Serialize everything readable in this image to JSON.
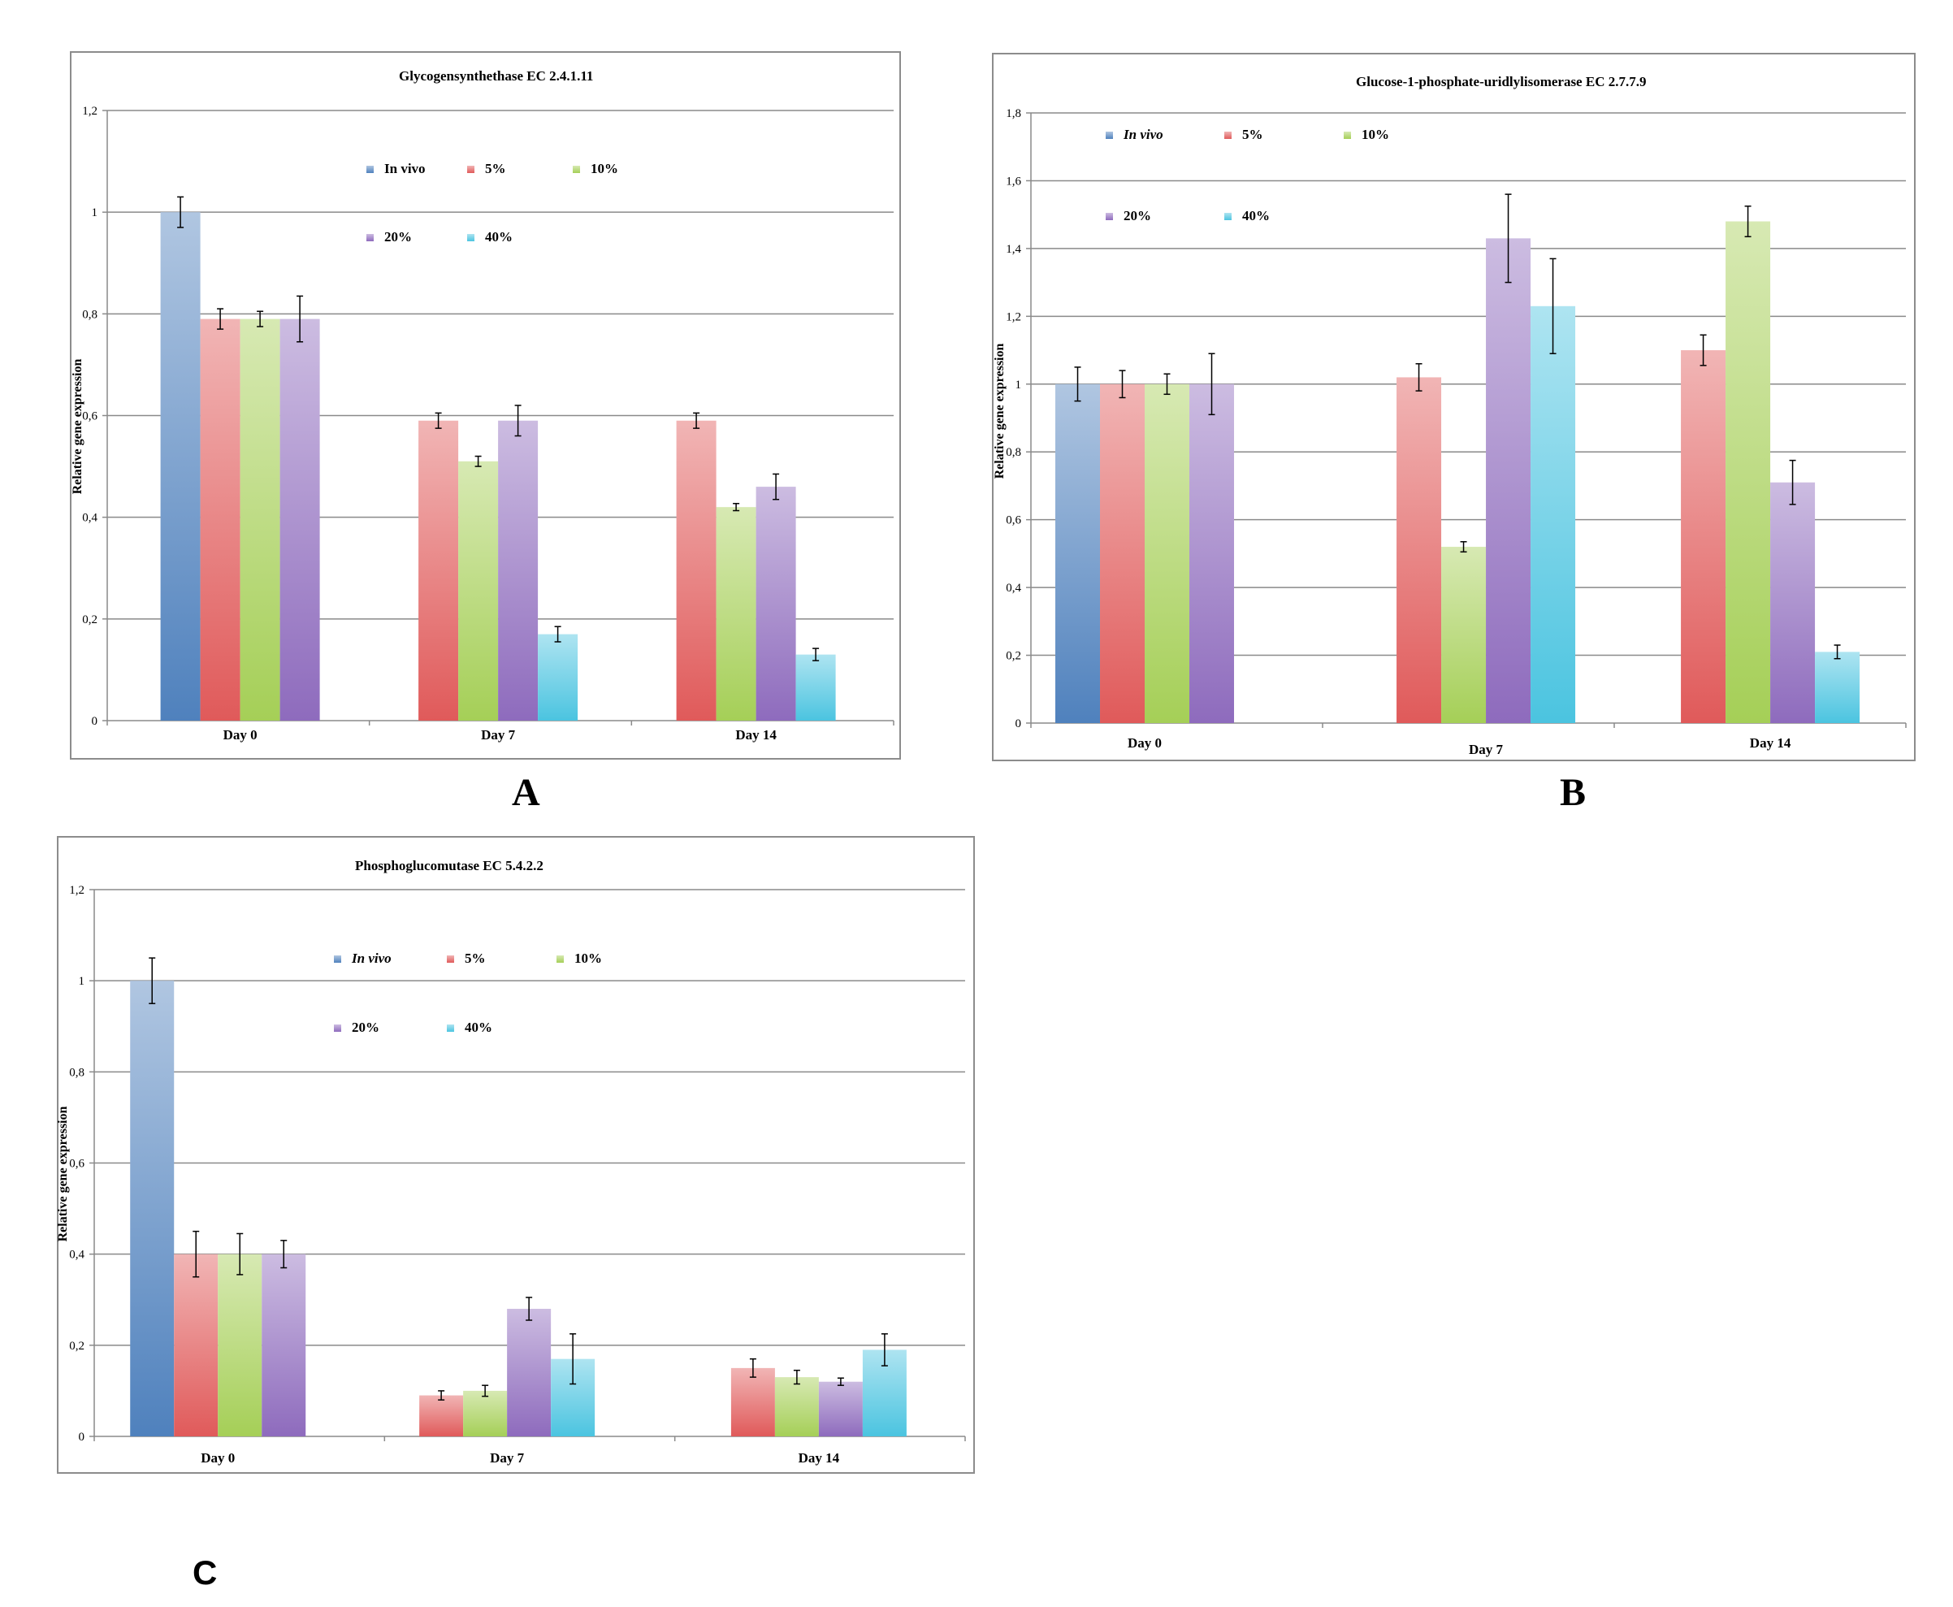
{
  "panel_letters": [
    "A",
    "B",
    "C"
  ],
  "chart_data": [
    {
      "type": "bar",
      "title": "Glycogensynthethase EC 2.4.1.11",
      "ylabel": "Relative gene expression",
      "xlabel": "",
      "categories": [
        "Day 0",
        "Day 7",
        "Day 14"
      ],
      "ylim": [
        0,
        1.2
      ],
      "yticks": [
        "0",
        "0,2",
        "0,4",
        "0,6",
        "0,8",
        "1",
        "1,2"
      ],
      "grid": true,
      "legend_italic": [
        false,
        false,
        false,
        false,
        false
      ],
      "series": [
        {
          "name": "In vivo",
          "color": "#4f81bd",
          "values": [
            1.0,
            null,
            null
          ],
          "errors": [
            0.03,
            null,
            null
          ]
        },
        {
          "name": "5%",
          "color": "#e05a5a",
          "values": [
            0.79,
            0.59,
            0.59
          ],
          "errors": [
            0.02,
            0.015,
            0.015
          ]
        },
        {
          "name": "10%",
          "color": "#a5cf57",
          "values": [
            0.79,
            0.51,
            0.42
          ],
          "errors": [
            0.015,
            0.01,
            0.007
          ]
        },
        {
          "name": "20%",
          "color": "#8e6bbd",
          "values": [
            0.79,
            0.59,
            0.46
          ],
          "errors": [
            0.045,
            0.03,
            0.025
          ]
        },
        {
          "name": "40%",
          "color": "#4bc4e0",
          "values": [
            null,
            0.17,
            0.13
          ],
          "errors": [
            null,
            0.015,
            0.012
          ]
        }
      ]
    },
    {
      "type": "bar",
      "title": "Glucose-1-phosphate-uridlylisomerase EC 2.7.7.9",
      "ylabel": "Relative gene expression",
      "xlabel": "",
      "categories": [
        "Day 0",
        "Day 7",
        "Day 14"
      ],
      "ylim": [
        0,
        1.8
      ],
      "yticks": [
        "0",
        "0,2",
        "0,4",
        "0,6",
        "0,8",
        "1",
        "1,2",
        "1,4",
        "1,6",
        "1,8"
      ],
      "grid": true,
      "legend_italic": [
        true,
        false,
        false,
        false,
        false
      ],
      "series": [
        {
          "name": "In vivo",
          "color": "#4f81bd",
          "values": [
            1.0,
            null,
            null
          ],
          "errors": [
            0.05,
            null,
            null
          ]
        },
        {
          "name": "5%",
          "color": "#e05a5a",
          "values": [
            1.0,
            1.02,
            1.1
          ],
          "errors": [
            0.04,
            0.04,
            0.045
          ]
        },
        {
          "name": "10%",
          "color": "#a5cf57",
          "values": [
            1.0,
            0.52,
            1.48
          ],
          "errors": [
            0.03,
            0.015,
            0.045
          ]
        },
        {
          "name": "20%",
          "color": "#8e6bbd",
          "values": [
            1.0,
            1.43,
            0.71
          ],
          "errors": [
            0.09,
            0.13,
            0.065
          ]
        },
        {
          "name": "40%",
          "color": "#4bc4e0",
          "values": [
            null,
            1.23,
            0.21
          ],
          "errors": [
            null,
            0.14,
            0.02
          ]
        }
      ]
    },
    {
      "type": "bar",
      "title": "Phosphoglucomutase EC 5.4.2.2",
      "ylabel": "Relative gene expression",
      "xlabel": "",
      "categories": [
        "Day 0",
        "Day 7",
        "Day 14"
      ],
      "ylim": [
        0,
        1.2
      ],
      "yticks": [
        "0",
        "0,2",
        "0,4",
        "0,6",
        "0,8",
        "1",
        "1,2"
      ],
      "grid": true,
      "legend_italic": [
        true,
        false,
        false,
        false,
        false
      ],
      "series": [
        {
          "name": "In vivo",
          "color": "#4f81bd",
          "values": [
            1.0,
            null,
            null
          ],
          "errors": [
            0.05,
            null,
            null
          ]
        },
        {
          "name": "5%",
          "color": "#e05a5a",
          "values": [
            0.4,
            0.09,
            0.15
          ],
          "errors": [
            0.05,
            0.01,
            0.02
          ]
        },
        {
          "name": "10%",
          "color": "#a5cf57",
          "values": [
            0.4,
            0.1,
            0.13
          ],
          "errors": [
            0.045,
            0.012,
            0.015
          ]
        },
        {
          "name": "20%",
          "color": "#8e6bbd",
          "values": [
            0.4,
            0.28,
            0.12
          ],
          "errors": [
            0.03,
            0.025,
            0.008
          ]
        },
        {
          "name": "40%",
          "color": "#4bc4e0",
          "values": [
            null,
            0.17,
            0.19
          ],
          "errors": [
            null,
            0.055,
            0.035
          ]
        }
      ]
    }
  ]
}
